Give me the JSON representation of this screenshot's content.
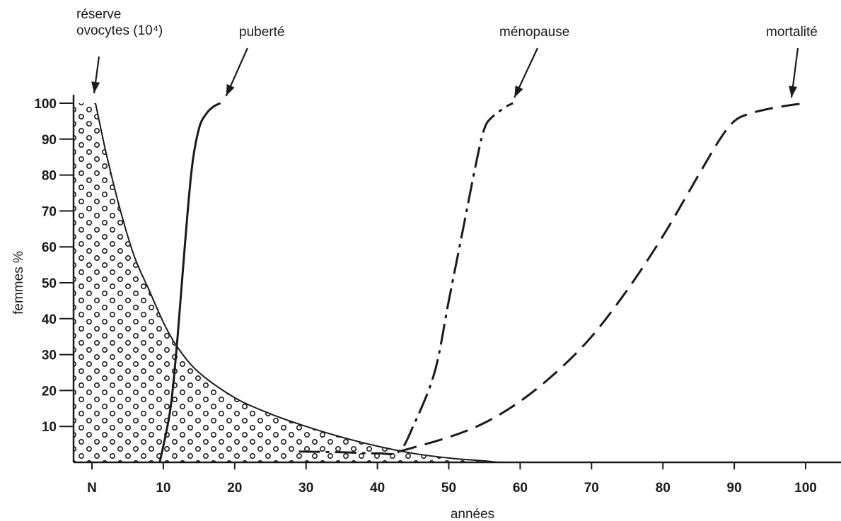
{
  "chart_data": {
    "type": "line",
    "xlabel": "années",
    "ylabel": "femmes %",
    "xlim": [
      0,
      100
    ],
    "ylim": [
      0,
      100
    ],
    "x_ticks": [
      {
        "value": 0,
        "label": "N"
      },
      {
        "value": 10,
        "label": "10"
      },
      {
        "value": 20,
        "label": "20"
      },
      {
        "value": 30,
        "label": "30"
      },
      {
        "value": 40,
        "label": "40"
      },
      {
        "value": 50,
        "label": "50"
      },
      {
        "value": 60,
        "label": "60"
      },
      {
        "value": 70,
        "label": "70"
      },
      {
        "value": 80,
        "label": "80"
      },
      {
        "value": 90,
        "label": "90"
      },
      {
        "value": 100,
        "label": "100"
      }
    ],
    "y_ticks": [
      {
        "value": 10,
        "label": "10"
      },
      {
        "value": 20,
        "label": "20"
      },
      {
        "value": 30,
        "label": "30"
      },
      {
        "value": 40,
        "label": "40"
      },
      {
        "value": 50,
        "label": "50"
      },
      {
        "value": 60,
        "label": "60"
      },
      {
        "value": 70,
        "label": "70"
      },
      {
        "value": 80,
        "label": "80"
      },
      {
        "value": 90,
        "label": "90"
      },
      {
        "value": 100,
        "label": "100"
      }
    ],
    "grid": false,
    "legend": "none",
    "series": [
      {
        "name": "réserve ovocytes (10⁴)",
        "style": "stippled-area",
        "color": "#1a1a1a",
        "x": [
          0.5,
          2,
          4,
          6,
          8,
          10,
          12,
          15,
          20,
          25,
          30,
          35,
          40,
          45,
          50,
          55,
          57
        ],
        "y": [
          100,
          86,
          70,
          57,
          48,
          39,
          32,
          25,
          18,
          13.5,
          10,
          7,
          4.5,
          2.5,
          1.2,
          0.4,
          0
        ]
      },
      {
        "name": "puberté",
        "style": "solid",
        "color": "#1a1a1a",
        "x": [
          9.5,
          11,
          12,
          13,
          14,
          15,
          16,
          17,
          18
        ],
        "y": [
          0,
          15,
          35,
          60,
          82,
          93,
          97,
          99,
          100
        ]
      },
      {
        "name": "ménopause",
        "style": "dash-dot",
        "color": "#1a1a1a",
        "x": [
          29,
          35,
          40,
          43,
          45,
          48,
          50,
          52,
          54,
          55,
          56,
          58,
          59
        ],
        "y": [
          3,
          2.8,
          2.5,
          3,
          10,
          25,
          45,
          65,
          85,
          93,
          96,
          99,
          100
        ]
      },
      {
        "name": "mortalité",
        "style": "dashed",
        "color": "#1a1a1a",
        "x": [
          43,
          50,
          55,
          60,
          65,
          70,
          75,
          80,
          85,
          88,
          90,
          92,
          95,
          98,
          100
        ],
        "y": [
          3,
          7,
          11,
          17,
          25,
          35,
          48,
          63,
          80,
          90,
          95,
          97,
          98.5,
          99.5,
          100
        ]
      }
    ],
    "annotations": [
      {
        "lines": [
          "réserve",
          "ovocytes (10⁴)"
        ],
        "series": "réserve ovocytes (10⁴)"
      },
      {
        "lines": [
          "puberté"
        ],
        "series": "puberté"
      },
      {
        "lines": [
          "ménopause"
        ],
        "series": "ménopause"
      },
      {
        "lines": [
          "mortalité"
        ],
        "series": "mortalité"
      }
    ]
  }
}
